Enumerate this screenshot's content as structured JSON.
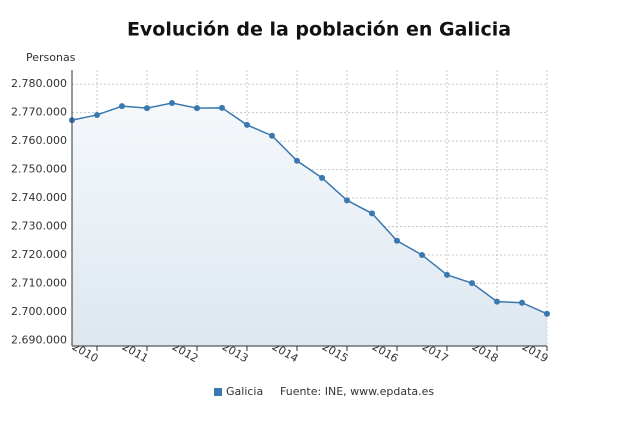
{
  "chart_data": {
    "type": "line",
    "title": "Evolución de la población en Galicia",
    "y_label": "Personas",
    "x": [
      2009.5,
      2010,
      2010.5,
      2011,
      2011.5,
      2012,
      2012.5,
      2013,
      2013.5,
      2014,
      2014.5,
      2015,
      2015.5,
      2016,
      2016.5,
      2017,
      2017.5,
      2018,
      2018.5,
      2019
    ],
    "series": [
      {
        "name": "Galicia",
        "color": "#3a78b0",
        "values": [
          2767400,
          2769200,
          2772300,
          2771600,
          2773400,
          2771600,
          2771700,
          2765700,
          2761900,
          2753100,
          2747100,
          2739200,
          2734600,
          2725000,
          2720000,
          2713000,
          2710100,
          2703600,
          2703200,
          2699300
        ]
      }
    ],
    "xlim": [
      2009.5,
      2019
    ],
    "xticks": [
      2010,
      2011,
      2012,
      2013,
      2014,
      2015,
      2016,
      2017,
      2018,
      2019
    ],
    "ylim": [
      2688000,
      2785000
    ],
    "yticks": [
      {
        "value": 2690000,
        "label": "2.690.000"
      },
      {
        "value": 2700000,
        "label": "2.700.000"
      },
      {
        "value": 2710000,
        "label": "2.710.000"
      },
      {
        "value": 2720000,
        "label": "2.720.000"
      },
      {
        "value": 2730000,
        "label": "2.730.000"
      },
      {
        "value": 2740000,
        "label": "2.740.000"
      },
      {
        "value": 2750000,
        "label": "2.750.000"
      },
      {
        "value": 2760000,
        "label": "2.760.000"
      },
      {
        "value": 2770000,
        "label": "2.770.000"
      },
      {
        "value": 2780000,
        "label": "2.780.000"
      }
    ],
    "grid": true,
    "source": "Fuente: INE, www.epdata.es"
  }
}
